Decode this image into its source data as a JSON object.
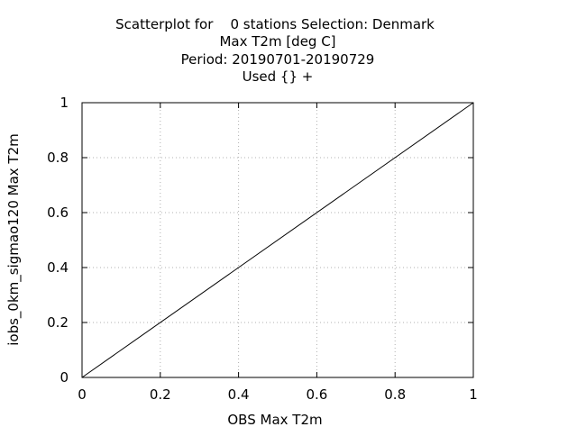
{
  "chart_data": {
    "type": "line",
    "title_lines": [
      "Scatterplot for    0 stations Selection: Denmark",
      "Max T2m [deg C]",
      "Period: 20190701-20190729",
      "Used {} +"
    ],
    "xlabel": "OBS Max T2m",
    "ylabel": "iobs_0km_sigmao120 Max T2m",
    "xlim": [
      0,
      1
    ],
    "ylim": [
      0,
      1
    ],
    "x_ticks": [
      "0",
      "0.2",
      "0.4",
      "0.6",
      "0.8",
      "1"
    ],
    "y_ticks": [
      "0",
      "0.2",
      "0.4",
      "0.6",
      "0.8",
      "1"
    ],
    "grid": true,
    "series": [
      {
        "x": [
          0,
          1
        ],
        "y": [
          0,
          1
        ],
        "color": "#000000"
      }
    ]
  }
}
